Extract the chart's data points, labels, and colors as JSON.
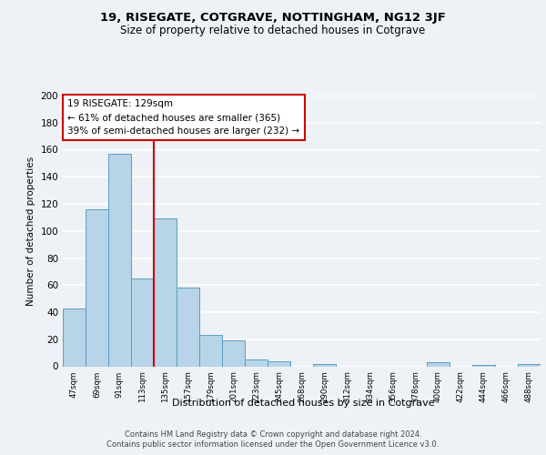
{
  "title": "19, RISEGATE, COTGRAVE, NOTTINGHAM, NG12 3JF",
  "subtitle": "Size of property relative to detached houses in Cotgrave",
  "xlabel": "Distribution of detached houses by size in Cotgrave",
  "ylabel": "Number of detached properties",
  "bin_labels": [
    "47sqm",
    "69sqm",
    "91sqm",
    "113sqm",
    "135sqm",
    "157sqm",
    "179sqm",
    "201sqm",
    "223sqm",
    "245sqm",
    "268sqm",
    "290sqm",
    "312sqm",
    "334sqm",
    "356sqm",
    "378sqm",
    "400sqm",
    "422sqm",
    "444sqm",
    "466sqm",
    "488sqm"
  ],
  "bar_heights": [
    43,
    116,
    157,
    65,
    109,
    58,
    23,
    19,
    5,
    4,
    0,
    2,
    0,
    0,
    0,
    0,
    3,
    0,
    1,
    0,
    2
  ],
  "bar_color": "#b8d4e8",
  "bar_edge_color": "#5a9fc0",
  "background_color": "#eef2f7",
  "grid_color": "#ffffff",
  "annotation_text_line1": "19 RISEGATE: 129sqm",
  "annotation_text_line2": "← 61% of detached houses are smaller (365)",
  "annotation_text_line3": "39% of semi-detached houses are larger (232) →",
  "annotation_box_facecolor": "#ffffff",
  "annotation_box_edgecolor": "#cc0000",
  "vertical_line_color": "#cc0000",
  "vertical_line_x": 3.5,
  "ylim": [
    0,
    200
  ],
  "yticks": [
    0,
    20,
    40,
    60,
    80,
    100,
    120,
    140,
    160,
    180,
    200
  ],
  "footer_line1": "Contains HM Land Registry data © Crown copyright and database right 2024.",
  "footer_line2": "Contains public sector information licensed under the Open Government Licence v3.0."
}
